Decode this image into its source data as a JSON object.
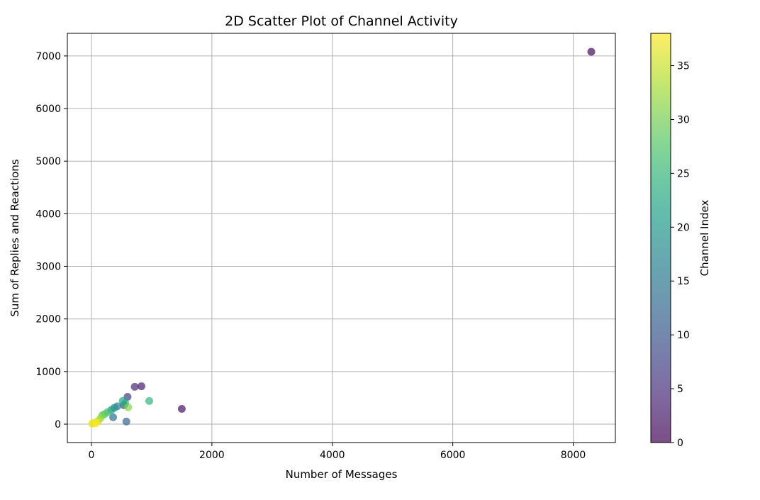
{
  "chart_data": {
    "type": "scatter",
    "title": "2D Scatter Plot of Channel Activity",
    "xlabel": "Number of Messages",
    "ylabel": "Sum of Replies and Reactions",
    "xlim": [
      -400,
      8700
    ],
    "ylim": [
      -350,
      7430
    ],
    "xticks": [
      0,
      2000,
      4000,
      6000,
      8000
    ],
    "yticks": [
      0,
      1000,
      2000,
      3000,
      4000,
      5000,
      6000,
      7000
    ],
    "grid": true,
    "colormap": "viridis",
    "marker_alpha": 0.7,
    "colorbar": {
      "label": "Channel Index",
      "range": [
        0,
        38
      ],
      "ticks": [
        0,
        5,
        10,
        15,
        20,
        25,
        30,
        35
      ]
    },
    "points": [
      {
        "x": 8300,
        "y": 7080,
        "c": 1
      },
      {
        "x": 1500,
        "y": 290,
        "c": 2
      },
      {
        "x": 830,
        "y": 720,
        "c": 3
      },
      {
        "x": 720,
        "y": 710,
        "c": 4
      },
      {
        "x": 600,
        "y": 520,
        "c": 7
      },
      {
        "x": 540,
        "y": 360,
        "c": 9
      },
      {
        "x": 580,
        "y": 50,
        "c": 12
      },
      {
        "x": 360,
        "y": 130,
        "c": 14
      },
      {
        "x": 430,
        "y": 340,
        "c": 16
      },
      {
        "x": 380,
        "y": 310,
        "c": 19
      },
      {
        "x": 330,
        "y": 270,
        "c": 20
      },
      {
        "x": 520,
        "y": 440,
        "c": 22
      },
      {
        "x": 560,
        "y": 400,
        "c": 23
      },
      {
        "x": 960,
        "y": 440,
        "c": 25
      },
      {
        "x": 270,
        "y": 230,
        "c": 26
      },
      {
        "x": 220,
        "y": 190,
        "c": 28
      },
      {
        "x": 180,
        "y": 170,
        "c": 29
      },
      {
        "x": 610,
        "y": 320,
        "c": 31
      },
      {
        "x": 150,
        "y": 110,
        "c": 32
      },
      {
        "x": 110,
        "y": 60,
        "c": 34
      },
      {
        "x": 60,
        "y": 30,
        "c": 35
      },
      {
        "x": 30,
        "y": 15,
        "c": 36
      },
      {
        "x": 10,
        "y": 10,
        "c": 37
      },
      {
        "x": 80,
        "y": 20,
        "c": 38
      }
    ]
  }
}
